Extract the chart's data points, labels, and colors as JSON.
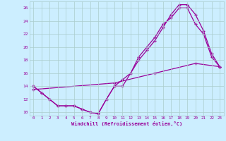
{
  "xlabel": "Windchill (Refroidissement éolien,°C)",
  "bg_color": "#cceeff",
  "line_color": "#990099",
  "grid_color": "#aacccc",
  "axis_label_color": "#990099",
  "tick_label_color": "#990099",
  "xlim": [
    -0.5,
    23.5
  ],
  "ylim": [
    9.5,
    27.0
  ],
  "xticks": [
    0,
    1,
    2,
    3,
    4,
    5,
    6,
    7,
    8,
    9,
    10,
    11,
    12,
    13,
    14,
    15,
    16,
    17,
    18,
    19,
    20,
    21,
    22,
    23
  ],
  "yticks": [
    10,
    12,
    14,
    16,
    18,
    20,
    22,
    24,
    26
  ],
  "s1_x": [
    0,
    1,
    2,
    3,
    4,
    5,
    6,
    7,
    8,
    9,
    10,
    11,
    12,
    13,
    14,
    15,
    16,
    17,
    18,
    19,
    20,
    21,
    22,
    23
  ],
  "s1_y": [
    14,
    13,
    12,
    11,
    11,
    11,
    10.5,
    10,
    9.8,
    12,
    14,
    15,
    16,
    18.5,
    20,
    21.5,
    23.5,
    24.5,
    26,
    26,
    23.5,
    22,
    18.5,
    17
  ],
  "s2_x": [
    0,
    1,
    2,
    3,
    4,
    5,
    6,
    7,
    8,
    9,
    10,
    11,
    12,
    13,
    14,
    15,
    16,
    17,
    18,
    19,
    20,
    21,
    22,
    23
  ],
  "s2_y": [
    14,
    13,
    12,
    11,
    11,
    11,
    10.5,
    10,
    9.8,
    12,
    14,
    14,
    16,
    18,
    19.5,
    21,
    23,
    25,
    26.5,
    26.5,
    25,
    22.5,
    19,
    17
  ],
  "s3_x": [
    0,
    10,
    15,
    20,
    23
  ],
  "s3_y": [
    13.5,
    14.5,
    16.0,
    17.5,
    17.0
  ]
}
